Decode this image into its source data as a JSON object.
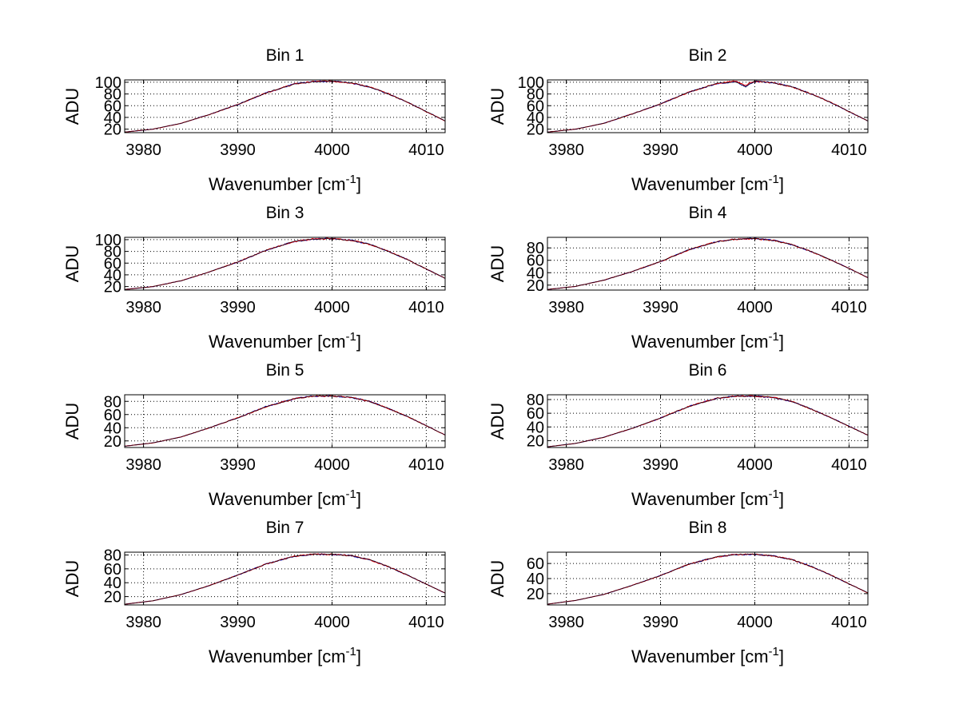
{
  "figure": {
    "background": "#ffffff",
    "line_colors": [
      "#0000cc",
      "#dd0000",
      "#000000"
    ]
  },
  "chart_data": [
    {
      "type": "line",
      "title": "Bin 1",
      "xlabel": "Wavenumber [cm",
      "xlabel_sup": "-1",
      "xlabel_end": "]",
      "ylabel": "ADU",
      "xlim": [
        3978,
        4012
      ],
      "ylim": [
        14,
        104
      ],
      "xticks": [
        3980,
        3990,
        4000,
        4010
      ],
      "yticks": [
        20,
        40,
        60,
        80,
        100
      ],
      "grid": true,
      "series": [
        {
          "name": "spectrum-blue",
          "x": [
            3978,
            3981,
            3984,
            3987,
            3990,
            3993,
            3996,
            3998,
            4000,
            4002,
            4004,
            4006,
            4008,
            4010,
            4012
          ],
          "y": [
            15,
            20,
            30,
            45,
            62,
            82,
            97,
            101,
            102,
            99,
            92,
            80,
            66,
            50,
            34
          ]
        },
        {
          "name": "spectrum-red",
          "x": [
            3978,
            3981,
            3984,
            3987,
            3990,
            3993,
            3996,
            3998,
            4000,
            4002,
            4004,
            4006,
            4008,
            4010,
            4012
          ],
          "y": [
            15,
            20,
            30,
            45,
            62,
            82,
            97,
            101,
            102,
            99,
            92,
            80,
            66,
            50,
            34
          ]
        }
      ]
    },
    {
      "type": "line",
      "title": "Bin 2",
      "xlabel": "Wavenumber [cm",
      "xlabel_sup": "-1",
      "xlabel_end": "]",
      "ylabel": "ADU",
      "xlim": [
        3978,
        4012
      ],
      "ylim": [
        14,
        104
      ],
      "xticks": [
        3980,
        3990,
        4000,
        4010
      ],
      "yticks": [
        20,
        40,
        60,
        80,
        100
      ],
      "grid": true,
      "series": [
        {
          "name": "spectrum-blue",
          "x": [
            3978,
            3981,
            3984,
            3987,
            3990,
            3993,
            3996,
            3998,
            3999,
            4000,
            4002,
            4004,
            4006,
            4008,
            4010,
            4012
          ],
          "y": [
            15,
            20,
            30,
            46,
            63,
            83,
            98,
            101,
            92,
            102,
            99,
            92,
            80,
            66,
            50,
            34
          ]
        },
        {
          "name": "spectrum-red",
          "x": [
            3978,
            3981,
            3984,
            3987,
            3990,
            3993,
            3996,
            3998,
            3999,
            4000,
            4002,
            4004,
            4006,
            4008,
            4010,
            4012
          ],
          "y": [
            15,
            20,
            30,
            46,
            63,
            83,
            98,
            102,
            95,
            102,
            99,
            92,
            80,
            66,
            50,
            34
          ]
        }
      ]
    },
    {
      "type": "line",
      "title": "Bin 3",
      "xlabel": "Wavenumber [cm",
      "xlabel_sup": "-1",
      "xlabel_end": "]",
      "ylabel": "ADU",
      "xlim": [
        3978,
        4012
      ],
      "ylim": [
        14,
        104
      ],
      "xticks": [
        3980,
        3990,
        4000,
        4010
      ],
      "yticks": [
        20,
        40,
        60,
        80,
        100
      ],
      "grid": true,
      "series": [
        {
          "name": "spectrum-blue",
          "x": [
            3978,
            3981,
            3984,
            3987,
            3990,
            3993,
            3996,
            3998,
            4000,
            4002,
            4004,
            4006,
            4008,
            4010,
            4012
          ],
          "y": [
            15,
            20,
            30,
            45,
            62,
            82,
            97,
            101,
            102,
            99,
            92,
            80,
            66,
            50,
            34
          ]
        },
        {
          "name": "spectrum-red",
          "x": [
            3978,
            3981,
            3984,
            3987,
            3990,
            3993,
            3996,
            3998,
            4000,
            4002,
            4004,
            4006,
            4008,
            4010,
            4012
          ],
          "y": [
            15,
            20,
            30,
            45,
            62,
            82,
            97,
            101,
            102,
            99,
            92,
            80,
            66,
            50,
            34
          ]
        }
      ]
    },
    {
      "type": "line",
      "title": "Bin 4",
      "xlabel": "Wavenumber [cm",
      "xlabel_sup": "-1",
      "xlabel_end": "]",
      "ylabel": "ADU",
      "xlim": [
        3978,
        4012
      ],
      "ylim": [
        12,
        97
      ],
      "xticks": [
        3980,
        3990,
        4000,
        4010
      ],
      "yticks": [
        20,
        40,
        60,
        80
      ],
      "grid": true,
      "series": [
        {
          "name": "spectrum-blue",
          "x": [
            3978,
            3981,
            3984,
            3987,
            3990,
            3993,
            3996,
            3998,
            4000,
            4002,
            4004,
            4006,
            4008,
            4010,
            4012
          ],
          "y": [
            13,
            18,
            28,
            42,
            58,
            77,
            90,
            94,
            95,
            92,
            85,
            74,
            61,
            47,
            32
          ]
        },
        {
          "name": "spectrum-red",
          "x": [
            3978,
            3981,
            3984,
            3987,
            3990,
            3993,
            3996,
            3998,
            4000,
            4002,
            4004,
            4006,
            4008,
            4010,
            4012
          ],
          "y": [
            13,
            18,
            28,
            42,
            58,
            77,
            90,
            94,
            95,
            92,
            85,
            74,
            61,
            47,
            32
          ]
        }
      ]
    },
    {
      "type": "line",
      "title": "Bin 5",
      "xlabel": "Wavenumber [cm",
      "xlabel_sup": "-1",
      "xlabel_end": "]",
      "ylabel": "ADU",
      "xlim": [
        3978,
        4012
      ],
      "ylim": [
        10,
        90
      ],
      "xticks": [
        3980,
        3990,
        4000,
        4010
      ],
      "yticks": [
        20,
        40,
        60,
        80
      ],
      "grid": true,
      "series": [
        {
          "name": "spectrum-blue",
          "x": [
            3978,
            3981,
            3984,
            3987,
            3990,
            3993,
            3996,
            3998,
            4000,
            4002,
            4004,
            4006,
            4008,
            4010,
            4012
          ],
          "y": [
            12,
            17,
            26,
            40,
            55,
            72,
            84,
            88,
            88,
            86,
            80,
            69,
            57,
            43,
            29
          ]
        },
        {
          "name": "spectrum-red",
          "x": [
            3978,
            3981,
            3984,
            3987,
            3990,
            3993,
            3996,
            3998,
            4000,
            4002,
            4004,
            4006,
            4008,
            4010,
            4012
          ],
          "y": [
            12,
            17,
            26,
            40,
            55,
            72,
            84,
            88,
            88,
            86,
            80,
            69,
            57,
            43,
            29
          ]
        }
      ]
    },
    {
      "type": "line",
      "title": "Bin 6",
      "xlabel": "Wavenumber [cm",
      "xlabel_sup": "-1",
      "xlabel_end": "]",
      "ylabel": "ADU",
      "xlim": [
        3978,
        4012
      ],
      "ylim": [
        10,
        87
      ],
      "xticks": [
        3980,
        3990,
        4000,
        4010
      ],
      "yticks": [
        20,
        40,
        60,
        80
      ],
      "grid": true,
      "series": [
        {
          "name": "spectrum-blue",
          "x": [
            3978,
            3981,
            3984,
            3987,
            3990,
            3993,
            3996,
            3998,
            4000,
            4002,
            4004,
            4006,
            4008,
            4010,
            4012
          ],
          "y": [
            11,
            16,
            25,
            38,
            53,
            70,
            82,
            85,
            85,
            83,
            77,
            66,
            54,
            41,
            28
          ]
        },
        {
          "name": "spectrum-red",
          "x": [
            3978,
            3981,
            3984,
            3987,
            3990,
            3993,
            3996,
            3998,
            4000,
            4002,
            4004,
            4006,
            4008,
            4010,
            4012
          ],
          "y": [
            11,
            16,
            25,
            38,
            53,
            70,
            82,
            85,
            85,
            83,
            77,
            66,
            54,
            41,
            28
          ]
        }
      ]
    },
    {
      "type": "line",
      "title": "Bin 7",
      "xlabel": "Wavenumber [cm",
      "xlabel_sup": "-1",
      "xlabel_end": "]",
      "ylabel": "ADU",
      "xlim": [
        3978,
        4012
      ],
      "ylim": [
        8,
        84
      ],
      "xticks": [
        3980,
        3990,
        4000,
        4010
      ],
      "yticks": [
        20,
        40,
        60,
        80
      ],
      "grid": true,
      "series": [
        {
          "name": "spectrum-blue",
          "x": [
            3978,
            3981,
            3984,
            3987,
            3990,
            3993,
            3996,
            3998,
            4000,
            4002,
            4004,
            4006,
            4008,
            4010,
            4012
          ],
          "y": [
            9,
            14,
            23,
            36,
            51,
            67,
            78,
            81,
            81,
            79,
            73,
            63,
            51,
            38,
            25
          ]
        },
        {
          "name": "spectrum-red",
          "x": [
            3978,
            3981,
            3984,
            3987,
            3990,
            3993,
            3996,
            3998,
            4000,
            4002,
            4004,
            4006,
            4008,
            4010,
            4012
          ],
          "y": [
            9,
            14,
            23,
            36,
            51,
            67,
            78,
            81,
            81,
            79,
            73,
            63,
            51,
            38,
            25
          ]
        }
      ]
    },
    {
      "type": "line",
      "title": "Bin 8",
      "xlabel": "Wavenumber [cm",
      "xlabel_sup": "-1",
      "xlabel_end": "]",
      "ylabel": "ADU",
      "xlim": [
        3978,
        4012
      ],
      "ylim": [
        5,
        75
      ],
      "xticks": [
        3980,
        3990,
        4000,
        4010
      ],
      "yticks": [
        20,
        40,
        60
      ],
      "grid": true,
      "series": [
        {
          "name": "spectrum-blue",
          "x": [
            3978,
            3981,
            3984,
            3987,
            3990,
            3993,
            3996,
            3998,
            4000,
            4002,
            4004,
            4006,
            4008,
            4010,
            4012
          ],
          "y": [
            6,
            11,
            19,
            31,
            44,
            59,
            69,
            72,
            72,
            70,
            65,
            56,
            45,
            33,
            21
          ]
        },
        {
          "name": "spectrum-red",
          "x": [
            3978,
            3981,
            3984,
            3987,
            3990,
            3993,
            3996,
            3998,
            4000,
            4002,
            4004,
            4006,
            4008,
            4010,
            4012
          ],
          "y": [
            6,
            11,
            19,
            31,
            44,
            59,
            69,
            72,
            72,
            70,
            65,
            56,
            45,
            33,
            21
          ]
        }
      ]
    }
  ]
}
